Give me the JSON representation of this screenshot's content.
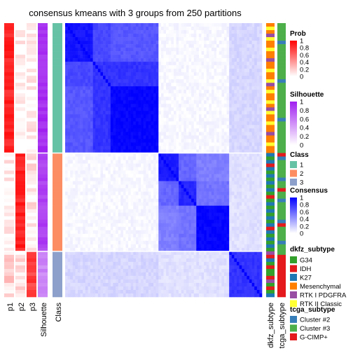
{
  "chart_data": {
    "type": "heatmap",
    "title": "consensus kmeans with 3 groups from 250 partitions",
    "n_samples": 78,
    "groups": [
      {
        "class": 1,
        "size": 37,
        "subclusters": [
          11,
          7,
          19
        ],
        "inner": [
          0.92,
          0.8,
          0.98
        ],
        "cross": [
          [
            0,
            0.72,
            0.66
          ],
          [
            0.72,
            0,
            0.8
          ],
          [
            0.66,
            0.8,
            0
          ]
        ],
        "p1": 0.86,
        "p2": 0.02,
        "p3": 0.03,
        "silhouette": 0.93
      },
      {
        "class": 2,
        "size": 28,
        "subclusters": [
          8,
          7,
          13
        ],
        "inner": [
          0.9,
          0.85,
          0.98
        ],
        "cross": [
          [
            0,
            0.6,
            0.5
          ],
          [
            0.6,
            0,
            0.55
          ],
          [
            0.5,
            0.55,
            0
          ]
        ],
        "p1": 0.03,
        "p2": 0.85,
        "p3": 0.08,
        "silhouette": 0.85
      },
      {
        "class": 3,
        "size": 13,
        "subclusters": [
          13
        ],
        "inner": [
          0.8
        ],
        "cross": [
          [
            0
          ]
        ],
        "p1": 0.15,
        "p2": 0.1,
        "p3": 0.75,
        "silhouette": 0.55
      }
    ],
    "between_group_consensus": [
      [
        1,
        0.03,
        0.16
      ],
      [
        0.03,
        1,
        0.12
      ],
      [
        0.16,
        0.12,
        1
      ]
    ],
    "row_labels": [
      "p1",
      "p2",
      "p3",
      "Silhouette",
      "Class"
    ],
    "annotation_columns": [
      "dkfz_subtype",
      "tcga_subtype"
    ],
    "dkfz_subtype_sequence": "RRRRRRRRRRRRRRRRRRRRRRRRRRRRRRRRRRRRRSSSSSSSSSSSSSSSSSSSSSSSSSSSSTTTTTTTTTTTTT",
    "tcga_subtype_sequence": "GGGGGGGGGGGGGGGGGGGGGGGGGGGGGGGGGGGGGGGGGGGGGGGGGGGGGGGGGGGGGGGGGGCCCCCCCCCCCC"
  },
  "legends": {
    "prob": {
      "title": "Prob",
      "ticks": [
        "1",
        "0.8",
        "0.6",
        "0.4",
        "0.2",
        "0"
      ],
      "low": "#ffffff",
      "high": "#ff0000"
    },
    "silhouette": {
      "title": "Silhouette",
      "ticks": [
        "1",
        "0.8",
        "0.6",
        "0.4",
        "0.2",
        "0"
      ],
      "low": "#ffffff",
      "high": "#a020f0"
    },
    "class": {
      "title": "Class",
      "items": [
        {
          "label": "1",
          "color": "#66c2a5"
        },
        {
          "label": "2",
          "color": "#fc8d62"
        },
        {
          "label": "3",
          "color": "#8da0cb"
        }
      ]
    },
    "consensus": {
      "title": "Consensus",
      "ticks": [
        "1",
        "0.8",
        "0.6",
        "0.4",
        "0.2",
        "0"
      ],
      "low": "#ffffff",
      "high": "#0000ff"
    },
    "dkfz_subtype": {
      "title": "dkfz_subtype",
      "items": [
        {
          "label": "G34",
          "color": "#33a02c"
        },
        {
          "label": "IDH",
          "color": "#e31a1c"
        },
        {
          "label": "K27",
          "color": "#1f78b4"
        },
        {
          "label": "Mesenchymal",
          "color": "#ff7f00"
        },
        {
          "label": "RTK I PDGFRA",
          "color": "#984ea3"
        },
        {
          "label": "RTK II Classic",
          "color": "#ffff33"
        }
      ]
    },
    "tcga_subtype": {
      "title": "tcga_subtype",
      "items": [
        {
          "label": "Cluster #2",
          "color": "#377eb8"
        },
        {
          "label": "Cluster #3",
          "color": "#4daf4a"
        },
        {
          "label": "G-CIMP+",
          "color": "#e41a1c"
        }
      ]
    }
  }
}
